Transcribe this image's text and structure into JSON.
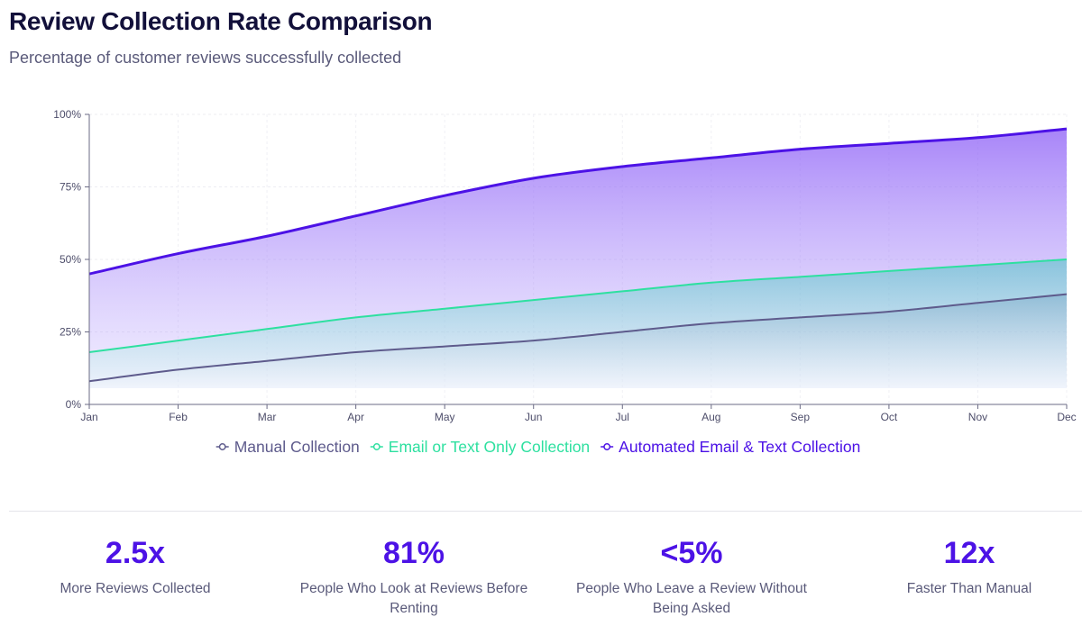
{
  "header": {
    "title": "Review Collection Rate Comparison",
    "subtitle": "Percentage of customer reviews successfully collected"
  },
  "chart_data": {
    "type": "area",
    "title": "Review Collection Rate Comparison",
    "subtitle": "Percentage of customer reviews successfully collected",
    "categories": [
      "Jan",
      "Feb",
      "Mar",
      "Apr",
      "May",
      "Jun",
      "Jul",
      "Aug",
      "Sep",
      "Oct",
      "Nov",
      "Dec"
    ],
    "ylim": [
      0,
      100
    ],
    "yticks": [
      0,
      25,
      50,
      75,
      100
    ],
    "ytick_labels": [
      "0%",
      "25%",
      "50%",
      "75%",
      "100%"
    ],
    "grid": true,
    "legend_position": "bottom-center",
    "series": [
      {
        "name": "Manual Collection",
        "color": "#5e5b8c",
        "values": [
          8,
          12,
          15,
          18,
          20,
          22,
          25,
          28,
          30,
          32,
          35,
          38
        ]
      },
      {
        "name": "Email or Text Only Collection",
        "color": "#2ee0a0",
        "values": [
          18,
          22,
          26,
          30,
          33,
          36,
          39,
          42,
          44,
          46,
          48,
          50
        ]
      },
      {
        "name": "Automated Email & Text Collection",
        "color": "#4c12e6",
        "values": [
          45,
          52,
          58,
          65,
          72,
          78,
          82,
          85,
          88,
          90,
          92,
          95
        ]
      }
    ]
  },
  "stats": [
    {
      "value": "2.5x",
      "label": "More Reviews Collected"
    },
    {
      "value": "81%",
      "label": "People Who Look at Reviews Before Renting"
    },
    {
      "value": "<5%",
      "label": "People Who Leave a Review Without Being Asked"
    },
    {
      "value": "12x",
      "label": "Faster Than Manual"
    }
  ]
}
